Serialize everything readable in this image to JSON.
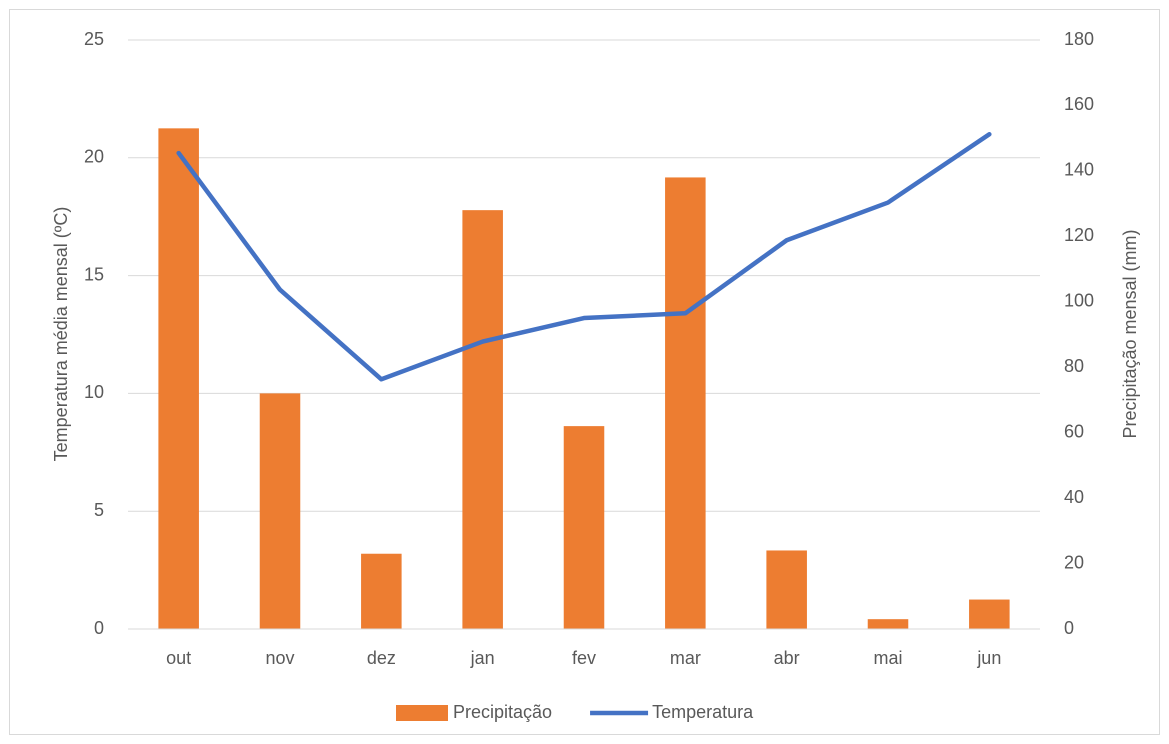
{
  "chart_data": {
    "type": "combo",
    "categories": [
      "out",
      "nov",
      "dez",
      "jan",
      "fev",
      "mar",
      "abr",
      "mai",
      "jun"
    ],
    "series": [
      {
        "name": "Precipitação",
        "type": "bar",
        "axis": "y2",
        "color": "#ed7d31",
        "values": [
          153,
          72,
          23,
          128,
          62,
          138,
          24,
          3,
          9
        ]
      },
      {
        "name": "Temperatura",
        "type": "line",
        "axis": "y",
        "color": "#4472c4",
        "values": [
          20.2,
          14.4,
          10.6,
          12.2,
          13.2,
          13.4,
          16.5,
          18.1,
          21.0
        ]
      }
    ],
    "ylabel": "Temperatura média mensal (ºC)",
    "y2label": "Precipitação mensal (mm)",
    "ylim": [
      0,
      25
    ],
    "yticks": [
      0,
      5,
      10,
      15,
      20,
      25
    ],
    "y2lim": [
      0,
      180
    ],
    "y2ticks": [
      0,
      20,
      40,
      60,
      80,
      100,
      120,
      140,
      160,
      180
    ],
    "grid": true,
    "legend": "bottom"
  }
}
